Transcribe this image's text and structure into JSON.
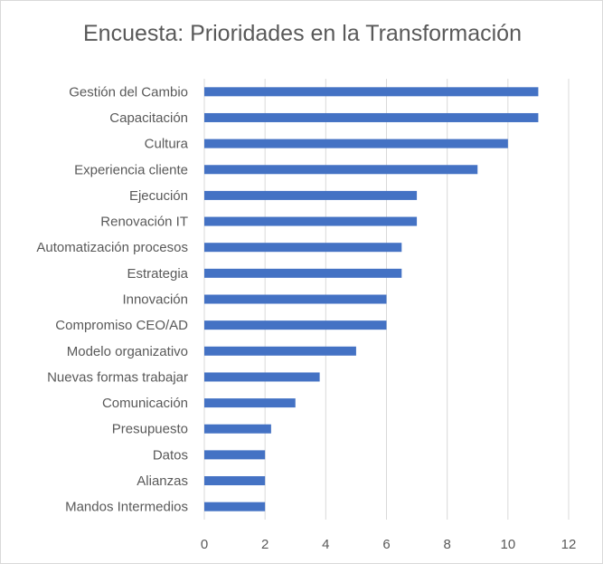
{
  "chart_data": {
    "type": "bar",
    "orientation": "horizontal",
    "title": "Encuesta: Prioridades en la Transformación",
    "categories": [
      "Gestión del Cambio",
      "Capacitación",
      "Cultura",
      "Experiencia cliente",
      "Ejecución ",
      "Renovación IT",
      "Automatización procesos",
      "Estrategia",
      "Innovación",
      "Compromiso CEO/AD",
      "Modelo organizativo",
      "Nuevas formas trabajar",
      "Comunicación ",
      "Presupuesto",
      "Datos",
      "Alianzas ",
      "Mandos Intermedios"
    ],
    "values": [
      11,
      11,
      10,
      9,
      7,
      7,
      6.5,
      6.5,
      6,
      6,
      5,
      3.8,
      3,
      2.2,
      2,
      2,
      2
    ],
    "xlim": [
      0,
      12
    ],
    "xticks": [
      "0",
      "2",
      "4",
      "6",
      "8",
      "10",
      "12"
    ],
    "grid": "vertical",
    "legend": "none",
    "bar_color": "#4472c4",
    "grid_color": "#d9d9d9",
    "text_color": "#595959"
  }
}
